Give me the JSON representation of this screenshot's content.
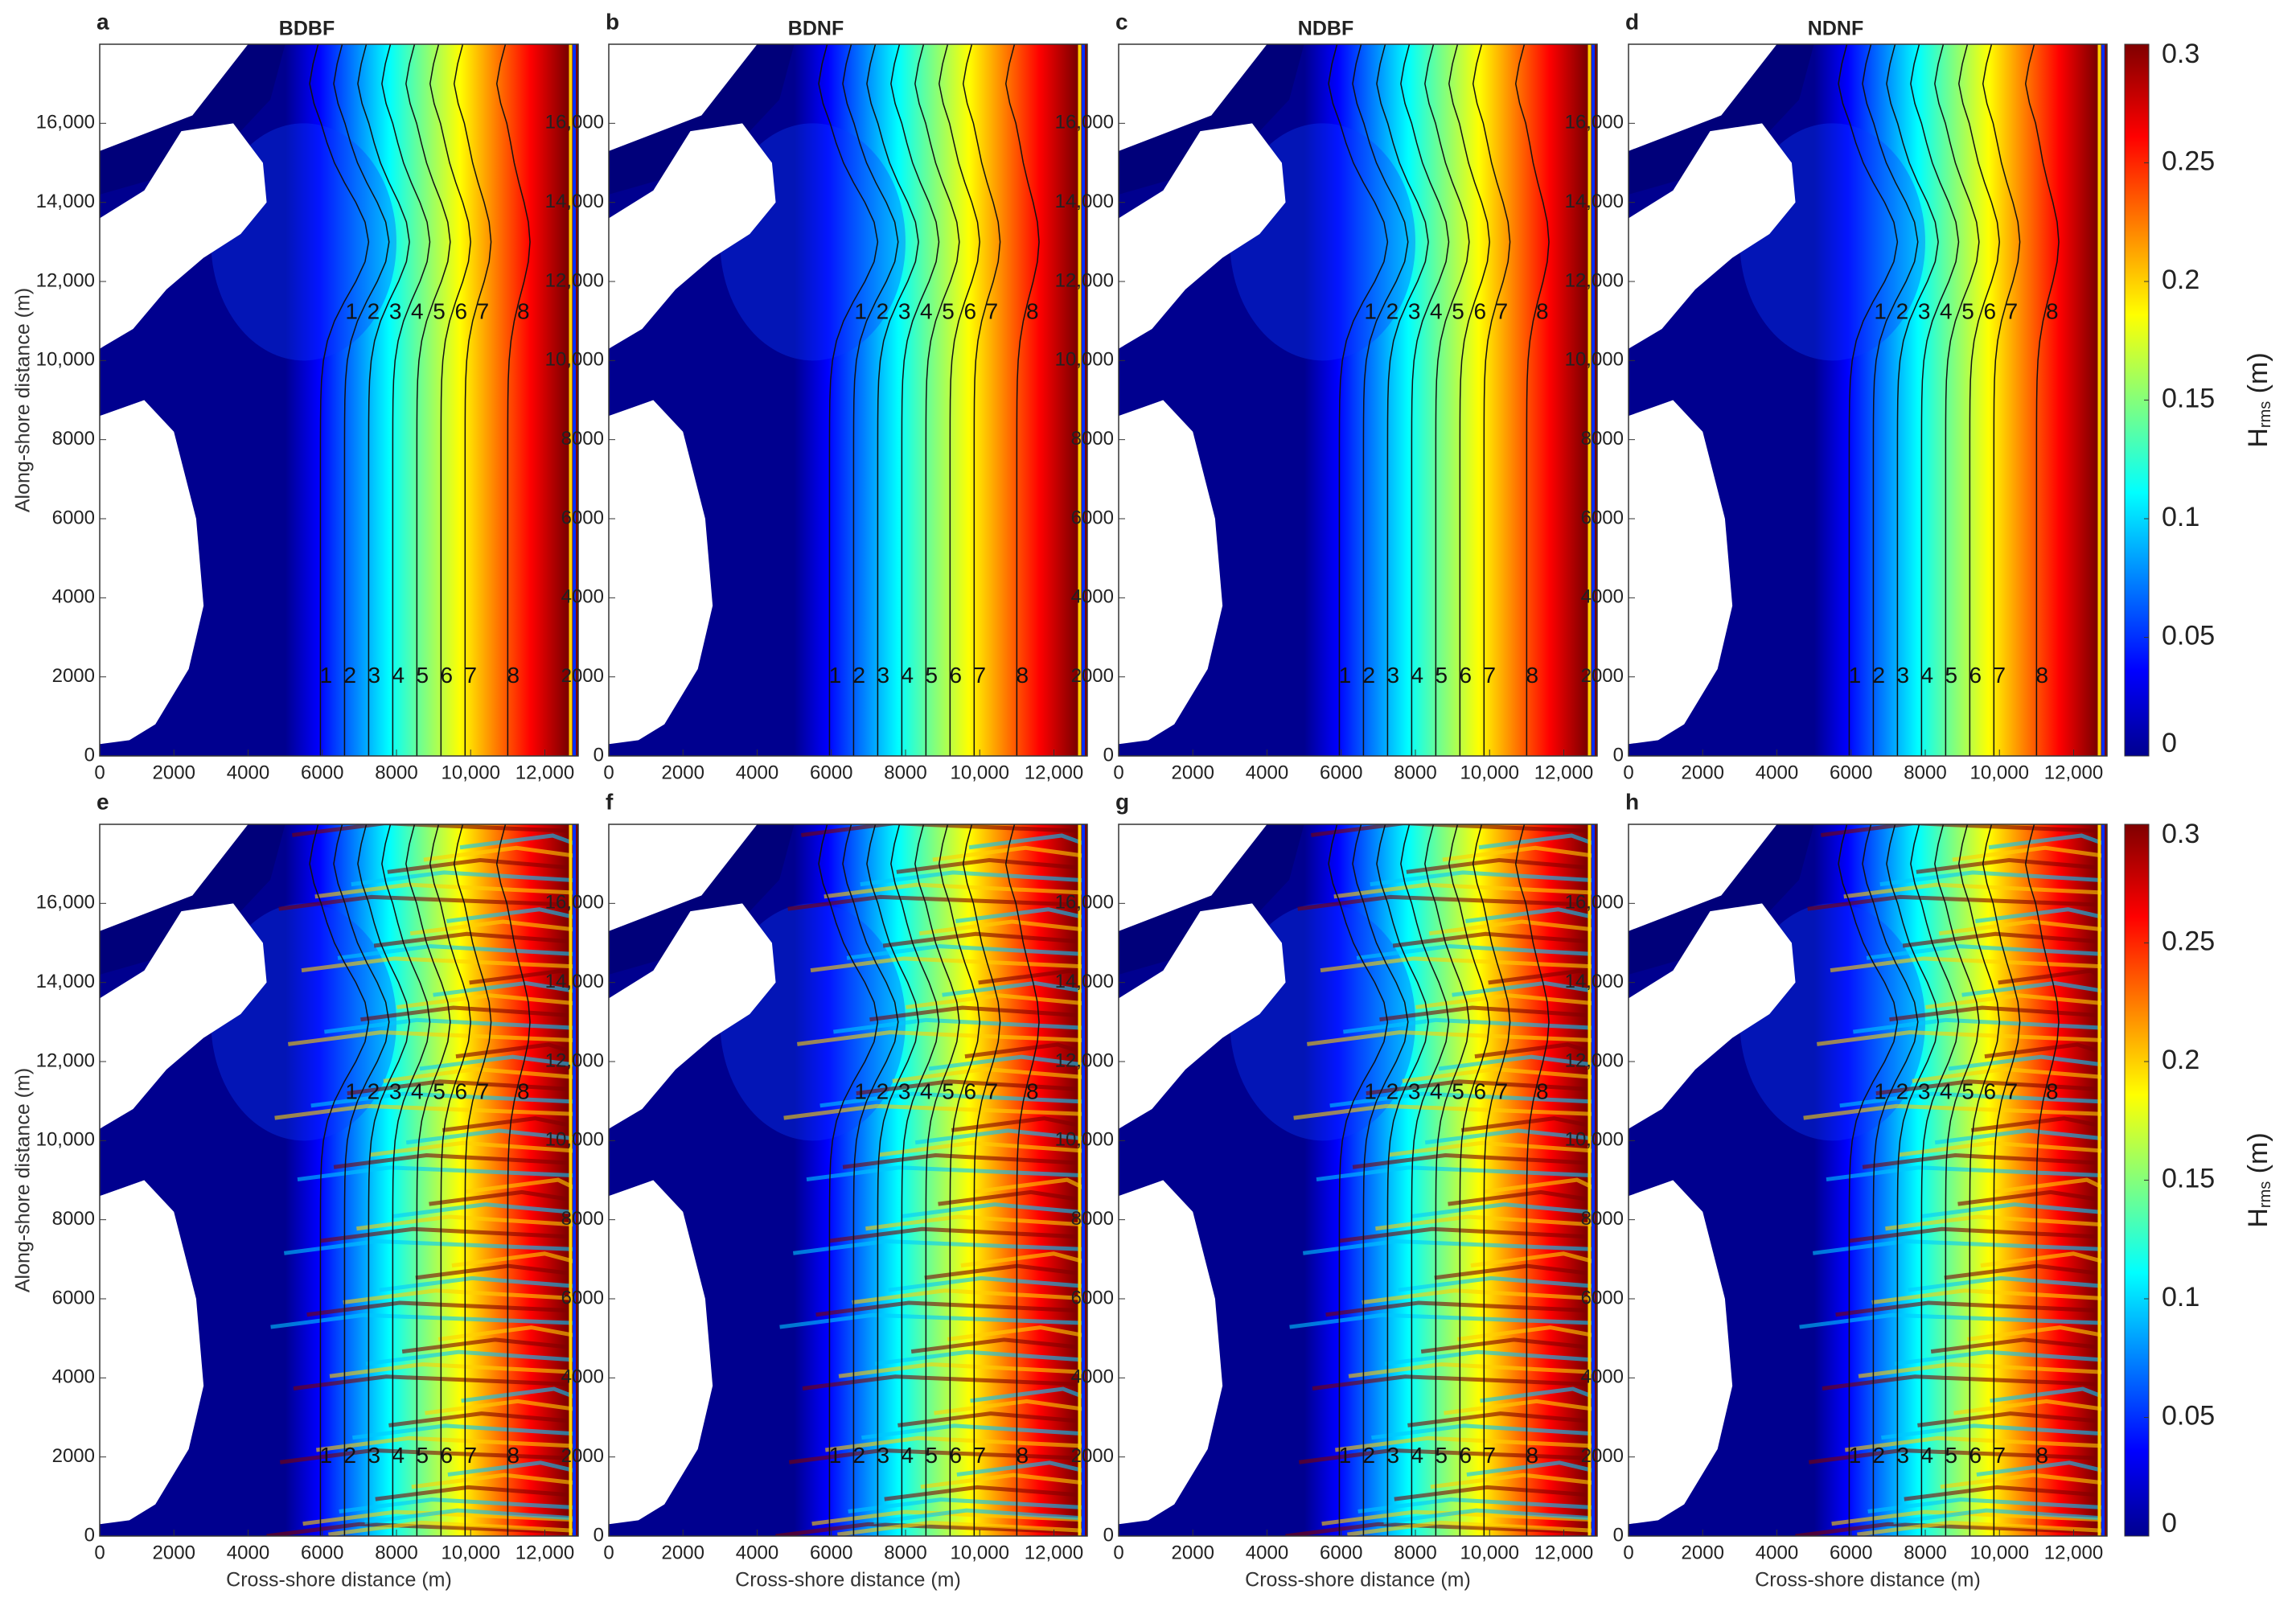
{
  "chart_data": [
    {
      "type": "heatmap",
      "panel": "a",
      "title": "BDBF",
      "ylabel": "Along-shore distance (m)",
      "xlim": [
        0,
        12900
      ],
      "ylim": [
        0,
        18000
      ],
      "xticks": [
        0,
        2000,
        4000,
        6000,
        8000,
        {
          "value": 10000,
          "label": "10,000"
        },
        {
          "value": 12000,
          "label": "12,000"
        }
      ],
      "yticks": [
        0,
        2000,
        4000,
        6000,
        8000,
        {
          "value": 10000,
          "label": "10,000"
        },
        {
          "value": 12000,
          "label": "12,000"
        },
        {
          "value": 14000,
          "label": "14,000"
        },
        {
          "value": 16000,
          "label": "16,000"
        }
      ],
      "contour_levels": [
        1,
        2,
        3,
        4,
        5,
        6,
        7,
        8
      ]
    },
    {
      "type": "heatmap",
      "panel": "b",
      "title": "BDNF",
      "xlim": [
        0,
        12900
      ],
      "ylim": [
        0,
        18000
      ],
      "xticks": [
        0,
        2000,
        4000,
        6000,
        8000,
        {
          "value": 10000,
          "label": "10,000"
        },
        {
          "value": 12000,
          "label": "12,000"
        }
      ],
      "yticks": [
        0,
        2000,
        4000,
        6000,
        8000,
        {
          "value": 10000,
          "label": "10,000"
        },
        {
          "value": 12000,
          "label": "12,000"
        },
        {
          "value": 14000,
          "label": "14,000"
        },
        {
          "value": 16000,
          "label": "16,000"
        }
      ],
      "contour_levels": [
        1,
        2,
        3,
        4,
        5,
        6,
        7,
        8
      ]
    },
    {
      "type": "heatmap",
      "panel": "c",
      "title": "NDBF",
      "xlim": [
        0,
        12900
      ],
      "ylim": [
        0,
        18000
      ],
      "xticks": [
        0,
        2000,
        4000,
        6000,
        8000,
        {
          "value": 10000,
          "label": "10,000"
        },
        {
          "value": 12000,
          "label": "12,000"
        }
      ],
      "yticks": [
        0,
        2000,
        4000,
        6000,
        8000,
        {
          "value": 10000,
          "label": "10,000"
        },
        {
          "value": 12000,
          "label": "12,000"
        },
        {
          "value": 14000,
          "label": "14,000"
        },
        {
          "value": 16000,
          "label": "16,000"
        }
      ],
      "contour_levels": [
        1,
        2,
        3,
        4,
        5,
        6,
        7,
        8
      ]
    },
    {
      "type": "heatmap",
      "panel": "d",
      "title": "NDNF",
      "xlim": [
        0,
        12900
      ],
      "ylim": [
        0,
        18000
      ],
      "xticks": [
        0,
        2000,
        4000,
        6000,
        8000,
        {
          "value": 10000,
          "label": "10,000"
        },
        {
          "value": 12000,
          "label": "12,000"
        }
      ],
      "yticks": [
        0,
        2000,
        4000,
        6000,
        8000,
        {
          "value": 10000,
          "label": "10,000"
        },
        {
          "value": 12000,
          "label": "12,000"
        },
        {
          "value": 14000,
          "label": "14,000"
        },
        {
          "value": 16000,
          "label": "16,000"
        }
      ],
      "contour_levels": [
        1,
        2,
        3,
        4,
        5,
        6,
        7,
        8
      ],
      "colorbar": {
        "symbol": "H",
        "subscript": "rms",
        "unit": "(m)",
        "lim": [
          0,
          0.3
        ],
        "ticks": [
          0,
          0.05,
          0.1,
          0.15,
          0.2,
          0.25,
          0.3
        ]
      }
    },
    {
      "type": "heatmap",
      "panel": "e",
      "ylabel": "Along-shore distance (m)",
      "xlabel": "Cross-shore distance (m)",
      "xlim": [
        0,
        12900
      ],
      "ylim": [
        0,
        18000
      ],
      "xticks": [
        0,
        2000,
        4000,
        6000,
        8000,
        {
          "value": 10000,
          "label": "10,000"
        },
        {
          "value": 12000,
          "label": "12,000"
        }
      ],
      "yticks": [
        0,
        2000,
        4000,
        6000,
        8000,
        {
          "value": 10000,
          "label": "10,000"
        },
        {
          "value": 12000,
          "label": "12,000"
        },
        {
          "value": 14000,
          "label": "14,000"
        },
        {
          "value": 16000,
          "label": "16,000"
        }
      ],
      "contour_levels": [
        1,
        2,
        3,
        4,
        5,
        6,
        7,
        8
      ]
    },
    {
      "type": "heatmap",
      "panel": "f",
      "xlabel": "Cross-shore distance (m)",
      "xlim": [
        0,
        12900
      ],
      "ylim": [
        0,
        18000
      ],
      "xticks": [
        0,
        2000,
        4000,
        6000,
        8000,
        {
          "value": 10000,
          "label": "10,000"
        },
        {
          "value": 12000,
          "label": "12,000"
        }
      ],
      "yticks": [
        0,
        2000,
        4000,
        6000,
        8000,
        {
          "value": 10000,
          "label": "10,000"
        },
        {
          "value": 12000,
          "label": "12,000"
        },
        {
          "value": 14000,
          "label": "14,000"
        },
        {
          "value": 16000,
          "label": "16,000"
        }
      ],
      "contour_levels": [
        1,
        2,
        3,
        4,
        5,
        6,
        7,
        8
      ]
    },
    {
      "type": "heatmap",
      "panel": "g",
      "xlabel": "Cross-shore distance (m)",
      "xlim": [
        0,
        12900
      ],
      "ylim": [
        0,
        18000
      ],
      "xticks": [
        0,
        2000,
        4000,
        6000,
        8000,
        {
          "value": 10000,
          "label": "10,000"
        },
        {
          "value": 12000,
          "label": "12,000"
        }
      ],
      "yticks": [
        0,
        2000,
        4000,
        6000,
        8000,
        {
          "value": 10000,
          "label": "10,000"
        },
        {
          "value": 12000,
          "label": "12,000"
        },
        {
          "value": 14000,
          "label": "14,000"
        },
        {
          "value": 16000,
          "label": "16,000"
        }
      ],
      "contour_levels": [
        1,
        2,
        3,
        4,
        5,
        6,
        7,
        8
      ]
    },
    {
      "type": "heatmap",
      "panel": "h",
      "xlabel": "Cross-shore distance (m)",
      "xlim": [
        0,
        12900
      ],
      "ylim": [
        0,
        18000
      ],
      "xticks": [
        0,
        2000,
        4000,
        6000,
        8000,
        {
          "value": 10000,
          "label": "10,000"
        },
        {
          "value": 12000,
          "label": "12,000"
        }
      ],
      "yticks": [
        0,
        2000,
        4000,
        6000,
        8000,
        {
          "value": 10000,
          "label": "10,000"
        },
        {
          "value": 12000,
          "label": "12,000"
        },
        {
          "value": 14000,
          "label": "14,000"
        },
        {
          "value": 16000,
          "label": "16,000"
        }
      ],
      "contour_levels": [
        1,
        2,
        3,
        4,
        5,
        6,
        7,
        8
      ],
      "colorbar": {
        "symbol": "H",
        "subscript": "rms",
        "unit": "(m)",
        "lim": [
          0,
          0.3
        ],
        "ticks": [
          0,
          0.05,
          0.1,
          0.15,
          0.2,
          0.25,
          0.3
        ]
      }
    }
  ]
}
